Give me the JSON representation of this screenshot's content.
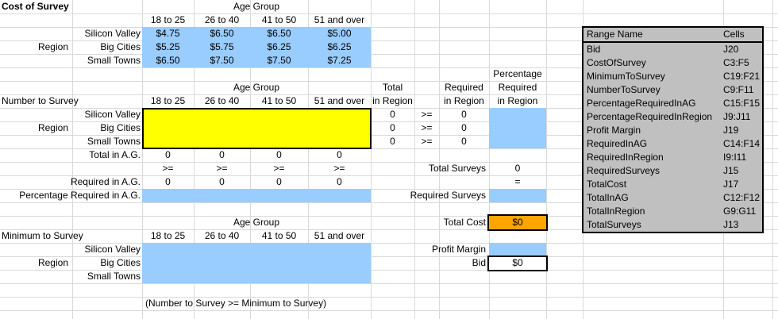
{
  "sheet": {
    "age_group_label": "Age Group",
    "age_headers": [
      "18 to 25",
      "26 to 40",
      "41 to 50",
      "51 and over"
    ],
    "region_label": "Region",
    "region_rows": [
      "Silicon Valley",
      "Big Cities",
      "Small Towns"
    ],
    "cost": {
      "title": "Cost of Survey",
      "values": [
        [
          "$4.75",
          "$6.50",
          "$6.50",
          "$5.00"
        ],
        [
          "$5.25",
          "$5.75",
          "$6.25",
          "$6.25"
        ],
        [
          "$6.50",
          "$7.50",
          "$7.50",
          "$7.25"
        ]
      ]
    },
    "number": {
      "title": "Number to Survey",
      "total_header": [
        "Total",
        "in Region"
      ],
      "required_header": [
        "Required",
        "in Region"
      ],
      "pct_header": [
        "Percentage",
        "Required",
        "in Region"
      ],
      "total_in_region": [
        "0",
        "0",
        "0"
      ],
      "required_in_region": [
        "0",
        "0",
        "0"
      ],
      "ge": ">=",
      "ge_row": [
        ">=",
        ">=",
        ">=",
        ">="
      ],
      "total_in_ag_label": "Total in A.G.",
      "total_in_ag": [
        "0",
        "0",
        "0",
        "0"
      ],
      "required_in_ag_label": "Required in A.G.",
      "required_in_ag": [
        "0",
        "0",
        "0",
        "0"
      ],
      "pct_required_in_ag_label": "Percentage Required in A.G."
    },
    "summary": {
      "total_surveys_label": "Total Surveys",
      "total_surveys_value": "0",
      "equals": "=",
      "required_surveys_label": "Required Surveys",
      "total_cost_label": "Total Cost",
      "total_cost_value": "$0",
      "profit_margin_label": "Profit Margin",
      "bid_label": "Bid",
      "bid_value": "$0"
    },
    "minimum": {
      "title": "Minimum to Survey",
      "note": "(Number to Survey >= Minimum to Survey)"
    },
    "panel": {
      "header": [
        "Range Name",
        "Cells"
      ],
      "rows": [
        [
          "Bid",
          "J20"
        ],
        [
          "CostOfSurvey",
          "C3:F5"
        ],
        [
          "MinimumToSurvey",
          "C19:F21"
        ],
        [
          "NumberToSurvey",
          "C9:F11"
        ],
        [
          "PercentageRequiredInAG",
          "C15:F15"
        ],
        [
          "PercentageRequiredInRegion",
          "J9:J11"
        ],
        [
          "Profit Margin",
          "J19"
        ],
        [
          "RequiredInAG",
          "C14:F14"
        ],
        [
          "RequiredInRegion",
          "I9:I11"
        ],
        [
          "RequiredSurveys",
          "J15"
        ],
        [
          "TotalCost",
          "J17"
        ],
        [
          "TotalInAG",
          "C12:F12"
        ],
        [
          "TotalInRegion",
          "G9:G11"
        ],
        [
          "TotalSurveys",
          "J13"
        ]
      ]
    },
    "colors": {
      "highlight_blue": "#99CCFF",
      "input_yellow": "#FFFF00",
      "total_cost_orange": "#FFA500",
      "panel_gray": "#C0C0C0"
    }
  }
}
